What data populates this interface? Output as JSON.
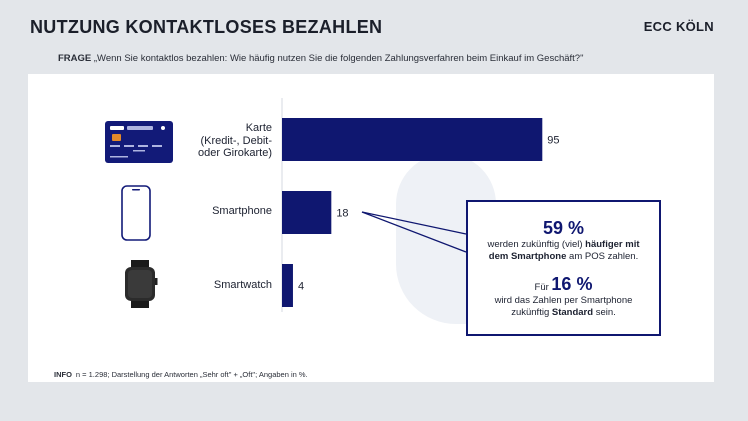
{
  "header": {
    "title": "NUTZUNG KONTAKTLOSES BEZAHLEN",
    "brand": "ECC KÖLN",
    "question_label": "FRAGE",
    "question_text": "„Wenn Sie kontaktlos bezahlen: Wie häufig nutzen Sie die folgenden Zahlungsverfahren beim Einkauf im Geschäft?\""
  },
  "chart_data": {
    "type": "bar",
    "orientation": "horizontal",
    "categories": [
      "Karte (Kredit-, Debit- oder Girokarte)",
      "Smartphone",
      "Smartwatch"
    ],
    "category_lines": [
      [
        "Karte",
        "(Kredit-, Debit-",
        "oder Girokarte)"
      ],
      [
        "Smartphone"
      ],
      [
        "Smartwatch"
      ]
    ],
    "values": [
      95,
      18,
      4
    ],
    "value_labels": [
      "95",
      "18",
      "4"
    ],
    "icons": [
      "credit-card-icon",
      "smartphone-icon",
      "smartwatch-icon"
    ],
    "xlim": [
      0,
      100
    ],
    "bar_color": "#0f1770"
  },
  "callout": {
    "value1": "59 %",
    "text1_line1_a": "werden zukünftig (viel) ",
    "text1_line1_b": "häufiger mit",
    "text1_line2_a": "dem Smartphone",
    "text1_line2_b": " am POS zahlen.",
    "text2_prefix": "Für ",
    "value2": "16 %",
    "text2_line1": "wird das Zahlen per Smartphone",
    "text2_line2_a": "zukünftig ",
    "text2_line2_b": "Standard",
    "text2_line2_c": " sein."
  },
  "footer": {
    "info_label": "INFO",
    "info_text": "n = 1.298; Darstellung der Antworten „Sehr oft\" + „Oft\"; Angaben in %."
  },
  "colors": {
    "accent": "#0f1770",
    "background": "#e3e6ea",
    "panel": "#ffffff"
  }
}
